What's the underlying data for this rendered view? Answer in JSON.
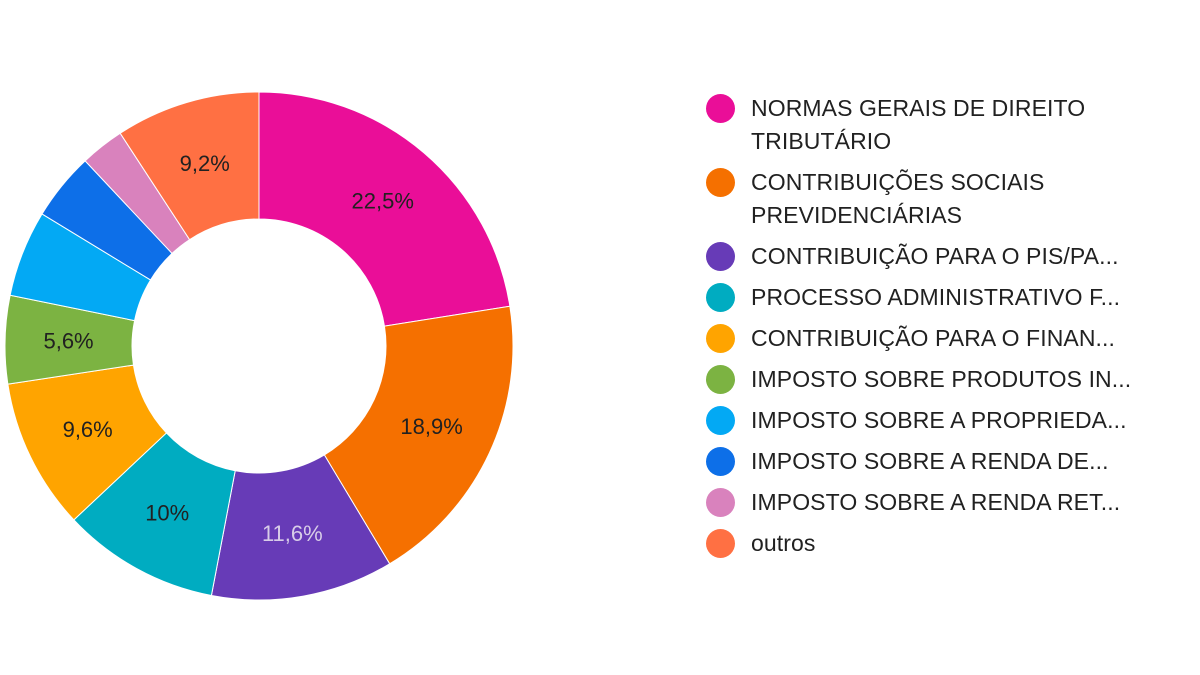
{
  "chart_data": {
    "type": "pie",
    "donut": true,
    "legend_position": "right",
    "slices": [
      {
        "name": "NORMAS GERAIS DE DIREITO TRIBUTÁRIO",
        "legend": "NORMAS GERAIS DE DIREITO TRIBUTÁRIO",
        "value": 22.5,
        "label": "22,5%",
        "color": "#ea0e98",
        "label_color": "#212121"
      },
      {
        "name": "CONTRIBUIÇÕES SOCIAIS PREVIDENCIÁRIAS",
        "legend": "CONTRIBUIÇÕES SOCIAIS PREVIDENCIÁRIAS",
        "value": 18.9,
        "label": "18,9%",
        "color": "#f57000",
        "label_color": "#212121"
      },
      {
        "name": "CONTRIBUIÇÃO PARA O PIS/PA...",
        "legend": "CONTRIBUIÇÃO PARA O PIS/PA...",
        "value": 11.6,
        "label": "11,6%",
        "color": "#673bb7",
        "label_color": "#d8cde8"
      },
      {
        "name": "PROCESSO ADMINISTRATIVO F...",
        "legend": "PROCESSO ADMINISTRATIVO F...",
        "value": 10,
        "label": "10%",
        "color": "#00acc1",
        "label_color": "#212121"
      },
      {
        "name": "CONTRIBUIÇÃO PARA O FINAN...",
        "legend": "CONTRIBUIÇÃO PARA O FINAN...",
        "value": 9.6,
        "label": "9,6%",
        "color": "#ffa400",
        "label_color": "#212121"
      },
      {
        "name": "IMPOSTO SOBRE PRODUTOS IN...",
        "legend": "IMPOSTO SOBRE PRODUTOS IN...",
        "value": 5.6,
        "label": "5,6%",
        "color": "#7cb342",
        "label_color": "#212121"
      },
      {
        "name": "IMPOSTO SOBRE A PROPRIEDA...",
        "legend": "IMPOSTO SOBRE A PROPRIEDA...",
        "value": 5.5,
        "label": "",
        "color": "#03a9f4",
        "label_color": "#212121"
      },
      {
        "name": "IMPOSTO SOBRE A RENDA DE...",
        "legend": "IMPOSTO SOBRE A RENDA DE...",
        "value": 4.3,
        "label": "",
        "color": "#0d6fe8",
        "label_color": "#212121"
      },
      {
        "name": "IMPOSTO SOBRE A RENDA RET...",
        "legend": "IMPOSTO SOBRE A RENDA RET...",
        "value": 2.8,
        "label": "",
        "color": "#d982bd",
        "label_color": "#212121"
      },
      {
        "name": "outros",
        "legend": "outros",
        "value": 9.2,
        "label": "9,2%",
        "color": "#ff7043",
        "label_color": "#212121"
      }
    ]
  }
}
